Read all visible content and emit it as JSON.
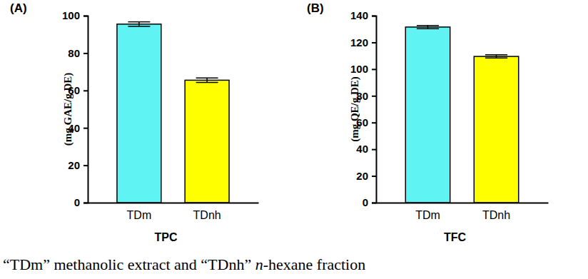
{
  "chart_data": [
    {
      "type": "bar",
      "title": "(A)",
      "x_label": "TPC",
      "y_label": "(mg GAE/g DE)",
      "categories": [
        "TDm",
        "TDnh"
      ],
      "values": [
        95.5,
        65.5
      ],
      "errors": [
        1.2,
        1.2
      ],
      "colors": [
        "#5ff3f3",
        "#ffff00"
      ],
      "ylim": [
        0,
        100
      ],
      "yticks": [
        0,
        20,
        40,
        60,
        80,
        100
      ],
      "grid": false
    },
    {
      "type": "bar",
      "title": "(B)",
      "x_label": "TFC",
      "y_label": "(mg QE/g DE)",
      "categories": [
        "TDm",
        "TDnh"
      ],
      "values": [
        131.5,
        109.5
      ],
      "errors": [
        1.2,
        1.2
      ],
      "colors": [
        "#5ff3f3",
        "#ffff00"
      ],
      "ylim": [
        0,
        140
      ],
      "yticks": [
        0,
        20,
        40,
        60,
        80,
        100,
        120,
        140
      ],
      "grid": false
    }
  ],
  "caption_parts": [
    "“TDm” methanolic extract and “TDnh” ",
    "n",
    "-hexane fraction"
  ]
}
